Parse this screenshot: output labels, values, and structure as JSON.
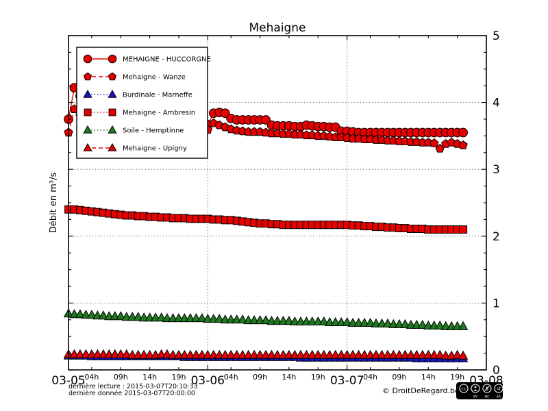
{
  "title": "Mehaigne",
  "footer": {
    "line1": "dernière lecture : 2015-03-07T20:10:33",
    "line2": "dernière donnée  2015-03-07T20:00:00",
    "copyright": "© DroitDeRegard.be",
    "license_cc": "cc",
    "license_labels": [
      "BY",
      "NC",
      "SA"
    ]
  },
  "chart_data": {
    "type": "line",
    "title": "Mehaigne",
    "ylabel": "Débit en m³/s",
    "ylim": [
      0,
      5
    ],
    "grid": true,
    "legend_position": "upper left",
    "x_unit": "hours since 2015-03-05 00:00",
    "x_step_hours": 1,
    "x_span_hours": 72,
    "x_major_ticks": [
      {
        "t": 0,
        "label": "03-05"
      },
      {
        "t": 24,
        "label": "03-06"
      },
      {
        "t": 48,
        "label": "03-07"
      },
      {
        "t": 72,
        "label": "03-08"
      }
    ],
    "x_minor_tick_hours": [
      4,
      9,
      14,
      19
    ],
    "x_minor_tick_labels": [
      "04h",
      "09h",
      "14h",
      "19h"
    ],
    "x_grid_hours": [
      24,
      48
    ],
    "y_major_ticks": [
      0,
      1,
      2,
      3,
      4,
      5
    ],
    "y_grid_values": [
      1,
      2,
      3,
      4
    ],
    "y_minor_step": 0.25,
    "series": [
      {
        "name": "MEHAIGNE - HUCCORGNE",
        "color": "#e60000",
        "marker": "circle",
        "line": "solid",
        "values": [
          3.75,
          4.22,
          4.1,
          3.92,
          3.88,
          3.85,
          3.83,
          3.81,
          3.8,
          3.79,
          3.78,
          3.77,
          3.76,
          3.75,
          3.74,
          3.73,
          3.72,
          3.71,
          3.71,
          3.7,
          3.7,
          3.69,
          3.68,
          3.68,
          3.67,
          3.84,
          3.85,
          3.84,
          3.76,
          3.74,
          3.74,
          3.74,
          3.74,
          3.74,
          3.74,
          3.66,
          3.65,
          3.65,
          3.65,
          3.64,
          3.64,
          3.66,
          3.65,
          3.64,
          3.64,
          3.63,
          3.63,
          3.57,
          3.57,
          3.56,
          3.55,
          3.55,
          3.55,
          3.55,
          3.55,
          3.55,
          3.55,
          3.55,
          3.55,
          3.55,
          3.55,
          3.55,
          3.55,
          3.55,
          3.55,
          3.55,
          3.55,
          3.55,
          3.55
        ]
      },
      {
        "name": "Mehaigne - Wanze",
        "color": "#e60000",
        "marker": "pentagon",
        "line": "dashed",
        "values": [
          3.55,
          3.9,
          3.8,
          3.7,
          3.68,
          3.66,
          3.65,
          3.64,
          3.63,
          3.62,
          3.62,
          3.61,
          3.61,
          3.6,
          3.6,
          3.6,
          3.59,
          3.59,
          3.59,
          3.59,
          3.59,
          3.59,
          3.59,
          3.59,
          3.59,
          3.69,
          3.66,
          3.63,
          3.6,
          3.58,
          3.57,
          3.56,
          3.56,
          3.56,
          3.55,
          3.54,
          3.54,
          3.53,
          3.53,
          3.52,
          3.52,
          3.51,
          3.51,
          3.5,
          3.5,
          3.49,
          3.48,
          3.48,
          3.47,
          3.46,
          3.46,
          3.45,
          3.45,
          3.44,
          3.44,
          3.43,
          3.43,
          3.42,
          3.42,
          3.41,
          3.41,
          3.4,
          3.4,
          3.39,
          3.31,
          3.38,
          3.4,
          3.38,
          3.36
        ]
      },
      {
        "name": "Burdinale - Marneffe",
        "color": "#1616c8",
        "marker": "triangle",
        "line": "dotted",
        "values": [
          0.21,
          0.21,
          0.21,
          0.21,
          0.2,
          0.2,
          0.2,
          0.2,
          0.2,
          0.2,
          0.2,
          0.2,
          0.2,
          0.2,
          0.2,
          0.2,
          0.2,
          0.2,
          0.2,
          0.2,
          0.19,
          0.19,
          0.19,
          0.19,
          0.19,
          0.19,
          0.19,
          0.19,
          0.19,
          0.19,
          0.19,
          0.19,
          0.19,
          0.19,
          0.19,
          0.19,
          0.19,
          0.19,
          0.19,
          0.19,
          0.18,
          0.18,
          0.18,
          0.18,
          0.18,
          0.18,
          0.18,
          0.18,
          0.18,
          0.18,
          0.18,
          0.18,
          0.18,
          0.18,
          0.18,
          0.18,
          0.18,
          0.18,
          0.18,
          0.18,
          0.17,
          0.17,
          0.17,
          0.17,
          0.17,
          0.17,
          0.17,
          0.17,
          0.17
        ]
      },
      {
        "name": "Mehaigne - Ambresin",
        "color": "#e60000",
        "marker": "square",
        "line": "dotted",
        "values": [
          2.4,
          2.4,
          2.39,
          2.38,
          2.37,
          2.36,
          2.35,
          2.34,
          2.33,
          2.32,
          2.31,
          2.31,
          2.3,
          2.3,
          2.29,
          2.29,
          2.28,
          2.28,
          2.27,
          2.27,
          2.27,
          2.26,
          2.26,
          2.26,
          2.26,
          2.25,
          2.25,
          2.24,
          2.24,
          2.23,
          2.22,
          2.21,
          2.2,
          2.19,
          2.19,
          2.18,
          2.18,
          2.17,
          2.17,
          2.17,
          2.17,
          2.17,
          2.17,
          2.17,
          2.17,
          2.17,
          2.17,
          2.17,
          2.17,
          2.16,
          2.16,
          2.15,
          2.15,
          2.14,
          2.14,
          2.13,
          2.13,
          2.12,
          2.12,
          2.11,
          2.11,
          2.11,
          2.1,
          2.1,
          2.1,
          2.1,
          2.1,
          2.1,
          2.1
        ]
      },
      {
        "name": "Soile - Hemptinne",
        "color": "#1f7a1f",
        "marker": "triangle",
        "line": "dotted",
        "values": [
          0.84,
          0.83,
          0.83,
          0.82,
          0.82,
          0.81,
          0.81,
          0.8,
          0.8,
          0.8,
          0.79,
          0.79,
          0.79,
          0.78,
          0.78,
          0.78,
          0.78,
          0.77,
          0.77,
          0.77,
          0.77,
          0.77,
          0.77,
          0.77,
          0.76,
          0.76,
          0.76,
          0.75,
          0.75,
          0.75,
          0.75,
          0.74,
          0.74,
          0.74,
          0.74,
          0.73,
          0.73,
          0.73,
          0.73,
          0.72,
          0.72,
          0.72,
          0.72,
          0.72,
          0.72,
          0.71,
          0.71,
          0.71,
          0.71,
          0.7,
          0.7,
          0.7,
          0.7,
          0.69,
          0.69,
          0.69,
          0.68,
          0.68,
          0.68,
          0.67,
          0.67,
          0.67,
          0.66,
          0.66,
          0.66,
          0.65,
          0.65,
          0.65,
          0.65
        ]
      },
      {
        "name": "Mehaigne - Upigny",
        "color": "#e60000",
        "marker": "triangle",
        "line": "dashed",
        "values": [
          0.23,
          0.23,
          0.23,
          0.23,
          0.23,
          0.23,
          0.23,
          0.23,
          0.23,
          0.23,
          0.23,
          0.22,
          0.22,
          0.22,
          0.22,
          0.22,
          0.23,
          0.23,
          0.22,
          0.22,
          0.22,
          0.22,
          0.22,
          0.22,
          0.22,
          0.22,
          0.22,
          0.22,
          0.22,
          0.22,
          0.22,
          0.22,
          0.22,
          0.22,
          0.22,
          0.22,
          0.22,
          0.22,
          0.22,
          0.22,
          0.22,
          0.22,
          0.22,
          0.22,
          0.22,
          0.22,
          0.22,
          0.22,
          0.22,
          0.22,
          0.22,
          0.22,
          0.22,
          0.22,
          0.22,
          0.22,
          0.22,
          0.22,
          0.22,
          0.22,
          0.22,
          0.22,
          0.22,
          0.22,
          0.22,
          0.21,
          0.21,
          0.22,
          0.21
        ]
      }
    ]
  }
}
